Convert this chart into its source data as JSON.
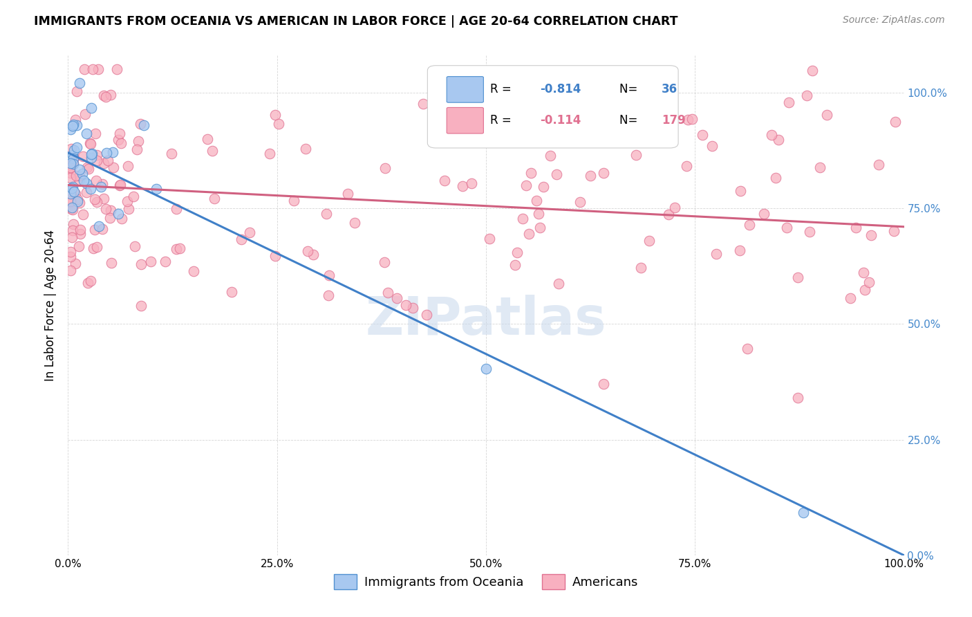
{
  "title": "IMMIGRANTS FROM OCEANIA VS AMERICAN IN LABOR FORCE | AGE 20-64 CORRELATION CHART",
  "source": "Source: ZipAtlas.com",
  "ylabel": "In Labor Force | Age 20-64",
  "blue_R": "-0.814",
  "blue_N": "36",
  "pink_R": "-0.114",
  "pink_N": "179",
  "blue_color": "#A8C8F0",
  "pink_color": "#F8B0C0",
  "blue_edge_color": "#5090D0",
  "pink_edge_color": "#E07090",
  "blue_line_color": "#4080C8",
  "pink_line_color": "#D06080",
  "watermark": "ZIPatlas",
  "watermark_color": "#C8D8EC",
  "blue_line_x0": 0.0,
  "blue_line_y0": 0.87,
  "blue_line_x1": 1.0,
  "blue_line_y1": 0.0,
  "pink_line_x0": 0.0,
  "pink_line_y0": 0.8,
  "pink_line_x1": 1.0,
  "pink_line_y1": 0.71,
  "blue_seed": 42,
  "pink_seed": 17,
  "xlim": [
    0.0,
    1.0
  ],
  "ylim": [
    0.0,
    1.08
  ],
  "xtick_vals": [
    0.0,
    0.25,
    0.5,
    0.75,
    1.0
  ],
  "xticklabels": [
    "0.0%",
    "25.0%",
    "50.0%",
    "75.0%",
    "100.0%"
  ],
  "ytick_vals": [
    0.0,
    0.25,
    0.5,
    0.75,
    1.0
  ],
  "yticklabels_right": [
    "0.0%",
    "25.0%",
    "50.0%",
    "75.0%",
    "100.0%"
  ],
  "right_tick_color": "#4488CC",
  "grid_color": "#CCCCCC",
  "legend_label_blue": "Immigrants from Oceania",
  "legend_label_pink": "Americans"
}
